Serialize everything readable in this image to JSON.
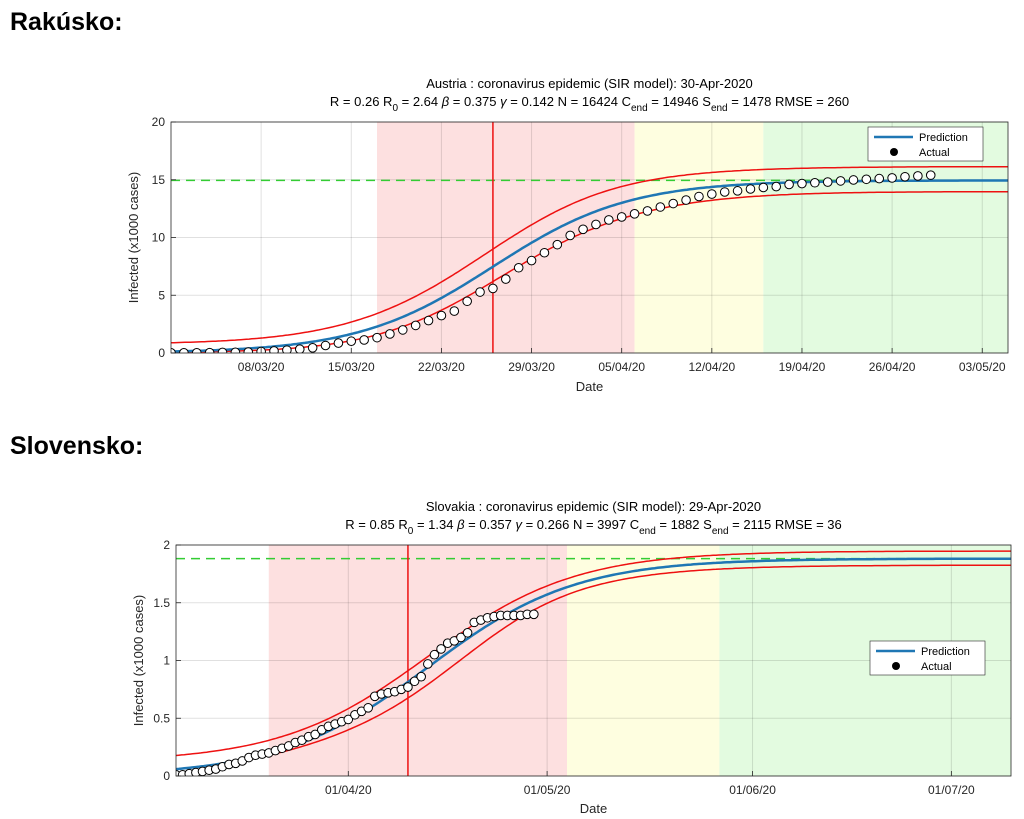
{
  "page": {
    "heading_top": "Rakúsko:",
    "heading_bottom": "Slovensko:"
  },
  "chart_data": [
    {
      "type": "line",
      "title": "Austria : coronavirus epidemic (SIR model): 30-Apr-2020",
      "params": [
        {
          "label": "R",
          "sub": "",
          "value": "0.26"
        },
        {
          "label": "R",
          "sub": "0",
          "value": "2.64"
        },
        {
          "label": "β",
          "sub": "",
          "value": "0.375"
        },
        {
          "label": "γ",
          "sub": "",
          "value": "0.142"
        },
        {
          "label": "N",
          "sub": "",
          "value": "16424"
        },
        {
          "label": "C",
          "sub": "end",
          "value": "14946"
        },
        {
          "label": "S",
          "sub": "end",
          "value": "1478"
        },
        {
          "label": "RMSE",
          "sub": "",
          "value": "260"
        }
      ],
      "xlabel": "Date",
      "ylabel": "Infected (x1000 cases)",
      "x_start": "2020-03-01",
      "xlim_days": [
        0,
        65
      ],
      "ylim": [
        0,
        20
      ],
      "yticks": [
        0,
        5,
        10,
        15,
        20
      ],
      "xticks": [
        {
          "day": 7,
          "label": "08/03/20"
        },
        {
          "day": 14,
          "label": "15/03/20"
        },
        {
          "day": 21,
          "label": "22/03/20"
        },
        {
          "day": 28,
          "label": "29/03/20"
        },
        {
          "day": 35,
          "label": "05/04/20"
        },
        {
          "day": 42,
          "label": "12/04/20"
        },
        {
          "day": 49,
          "label": "19/04/20"
        },
        {
          "day": 56,
          "label": "26/04/20"
        },
        {
          "day": 63,
          "label": "03/05/20"
        }
      ],
      "grid": true,
      "legend_position": "top-right",
      "legend_entries": [
        "Prediction",
        "Actual"
      ],
      "zones": [
        {
          "from": 16,
          "to": 36,
          "color": "#fde0e0"
        },
        {
          "from": 36,
          "to": 46,
          "color": "#fefee0"
        },
        {
          "from": 46,
          "to": 65,
          "color": "#e3fbe0"
        }
      ],
      "peak_day": 25,
      "c_end": 14.946,
      "model": {
        "L": 14.946,
        "t0": 25,
        "k": 0.19,
        "band_lo": 0.13,
        "band_hi": 0.16,
        "band_min": 0.7,
        "band_max": 1.25
      },
      "actual_days": [
        0,
        1,
        2,
        3,
        4,
        5,
        6,
        7,
        8,
        9,
        10,
        11,
        12,
        13,
        14,
        15,
        16,
        17,
        18,
        19,
        20,
        21,
        22,
        23,
        24,
        25,
        26,
        27,
        28,
        29,
        30,
        31,
        32,
        33,
        34,
        35,
        36,
        37,
        38,
        39,
        40,
        41,
        42,
        43,
        44,
        45,
        46,
        47,
        48,
        49,
        50,
        51,
        52,
        53,
        54,
        55,
        56,
        57,
        58,
        59
      ],
      "actual_values": [
        0.02,
        0.02,
        0.02,
        0.03,
        0.05,
        0.06,
        0.08,
        0.13,
        0.18,
        0.25,
        0.33,
        0.45,
        0.65,
        0.86,
        1.02,
        1.13,
        1.33,
        1.65,
        2.0,
        2.39,
        2.81,
        3.24,
        3.63,
        4.48,
        5.28,
        5.59,
        6.4,
        7.38,
        8.0,
        8.68,
        9.38,
        10.18,
        10.71,
        11.13,
        11.52,
        11.78,
        12.05,
        12.3,
        12.64,
        12.94,
        13.24,
        13.55,
        13.76,
        13.94,
        14.04,
        14.2,
        14.33,
        14.41,
        14.59,
        14.67,
        14.74,
        14.8,
        14.9,
        14.98,
        15.04,
        15.1,
        15.16,
        15.26,
        15.33,
        15.4
      ],
      "legend_colors": {
        "prediction": "#1f77b4",
        "band": "#ee1111",
        "c_end_line": "#33cc33"
      }
    },
    {
      "type": "line",
      "title": "Slovakia : coronavirus epidemic (SIR model): 29-Apr-2020",
      "params": [
        {
          "label": "R",
          "sub": "",
          "value": "0.85"
        },
        {
          "label": "R",
          "sub": "0",
          "value": "1.34"
        },
        {
          "label": "β",
          "sub": "",
          "value": "0.357"
        },
        {
          "label": "γ",
          "sub": "",
          "value": "0.266"
        },
        {
          "label": "N",
          "sub": "",
          "value": "3997"
        },
        {
          "label": "C",
          "sub": "end",
          "value": "1882"
        },
        {
          "label": "S",
          "sub": "end",
          "value": "2115"
        },
        {
          "label": "RMSE",
          "sub": "",
          "value": "36"
        }
      ],
      "xlabel": "Date",
      "ylabel": "Infected (x1000 cases)",
      "x_start": "2020-03-06",
      "xlim_days": [
        0,
        126
      ],
      "ylim": [
        0,
        2
      ],
      "yticks": [
        0,
        0.5,
        1,
        1.5,
        2
      ],
      "yticklabels": [
        "0",
        "0.5",
        "1",
        "1.5",
        "2"
      ],
      "xticks": [
        {
          "day": 26,
          "label": "01/04/20"
        },
        {
          "day": 56,
          "label": "01/05/20"
        },
        {
          "day": 87,
          "label": "01/06/20"
        },
        {
          "day": 117,
          "label": "01/07/20"
        }
      ],
      "grid": true,
      "legend_position": "right",
      "legend_entries": [
        "Prediction",
        "Actual"
      ],
      "zones": [
        {
          "from": 14,
          "to": 59,
          "color": "#fde0e0"
        },
        {
          "from": 59,
          "to": 82,
          "color": "#fefee0"
        },
        {
          "from": 82,
          "to": 126,
          "color": "#e3fbe0"
        }
      ],
      "peak_day": 35,
      "c_end": 1.882,
      "model": {
        "L": 1.882,
        "t0": 38,
        "k": 0.09,
        "band_lo": 0.06,
        "band_hi": 0.07,
        "band_min": 0.1,
        "band_max": 0.12
      },
      "actual_days": [
        0,
        1,
        2,
        3,
        4,
        5,
        6,
        7,
        8,
        9,
        10,
        11,
        12,
        13,
        14,
        15,
        16,
        17,
        18,
        19,
        20,
        21,
        22,
        23,
        24,
        25,
        26,
        27,
        28,
        29,
        30,
        31,
        32,
        33,
        34,
        35,
        36,
        37,
        38,
        39,
        40,
        41,
        42,
        43,
        44,
        45,
        46,
        47,
        48,
        49,
        50,
        51,
        52,
        53,
        54
      ],
      "actual_values": [
        0.01,
        0.01,
        0.02,
        0.03,
        0.04,
        0.05,
        0.06,
        0.08,
        0.1,
        0.11,
        0.13,
        0.16,
        0.18,
        0.19,
        0.2,
        0.22,
        0.24,
        0.26,
        0.29,
        0.31,
        0.34,
        0.36,
        0.4,
        0.43,
        0.45,
        0.47,
        0.49,
        0.53,
        0.56,
        0.59,
        0.69,
        0.71,
        0.72,
        0.73,
        0.75,
        0.77,
        0.82,
        0.86,
        0.97,
        1.05,
        1.1,
        1.15,
        1.17,
        1.2,
        1.24,
        1.33,
        1.35,
        1.37,
        1.38,
        1.39,
        1.39,
        1.39,
        1.39,
        1.4,
        1.4
      ],
      "legend_colors": {
        "prediction": "#1f77b4",
        "band": "#ee1111",
        "c_end_line": "#33cc33"
      }
    }
  ]
}
